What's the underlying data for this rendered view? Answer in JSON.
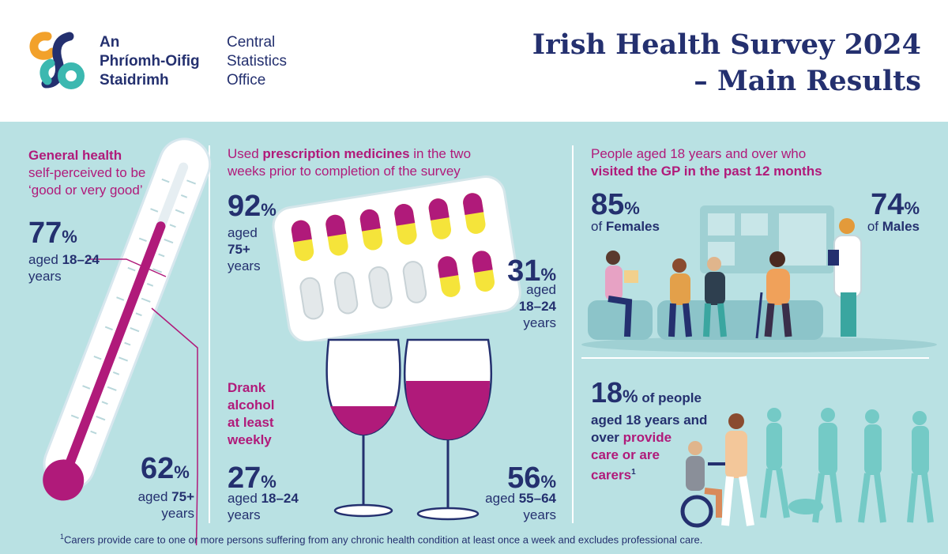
{
  "logo": {
    "irish_line1": "An",
    "irish_line2": "Phríomh-Oifig",
    "irish_line3": "Staidrimh",
    "english_line1": "Central",
    "english_line2": "Statistics",
    "english_line3": "Office"
  },
  "title": {
    "line1": "Irish Health Survey 2024",
    "line2": "– Main Results"
  },
  "general_health": {
    "heading_bold": "General health",
    "heading_rest1": "self-perceived to be",
    "heading_rest2": "‘good or very good’",
    "young_value": "77",
    "young_label1": "aged",
    "young_label_bold": "18–24",
    "young_label2": "years",
    "old_value": "62",
    "old_label1": "aged",
    "old_label_bold": "75+",
    "old_label2": "years"
  },
  "prescription": {
    "heading_pre": "Used ",
    "heading_bold": "prescription medicines",
    "heading_post": " in the two",
    "heading_line2": "weeks prior to completion of the survey",
    "old_value": "92",
    "old_label1": "aged",
    "old_label2": "75+",
    "old_label3": "years",
    "young_value": "31",
    "young_label1": "aged",
    "young_label2": "18–24",
    "young_label3": "years"
  },
  "gp": {
    "heading_line1": "People aged 18 years and over who",
    "heading_line2_bold": "visited the GP in the past 12 months",
    "female_value": "85",
    "female_label_pre": "of ",
    "female_label_bold": "Females",
    "male_value": "74",
    "male_label_pre": "of ",
    "male_label_bold": "Males"
  },
  "alcohol": {
    "heading1": "Drank",
    "heading2": "alcohol",
    "heading3": "at least",
    "heading4": "weekly",
    "young_value": "27",
    "young_label1": "aged",
    "young_label_bold": "18–24",
    "young_label2": "years",
    "mid_value": "56",
    "mid_label1": "aged",
    "mid_label_bold": "55–64",
    "mid_label2": "years"
  },
  "carers": {
    "value": "18",
    "line1": "of people",
    "line2": "aged 18 years and",
    "line3_pre": "over ",
    "line3_mag": "provide",
    "line4": "care or are",
    "line5": "carers",
    "sup": "1"
  },
  "footnote": {
    "marker": "1",
    "text": "Carers provide care to one or more persons suffering from any chronic health condition at least once a week and excludes professional care."
  },
  "pct_sign": "%",
  "colors": {
    "navy": "#24306f",
    "magenta": "#b01a7a",
    "teal_bg": "#b9e1e3",
    "logo_orange": "#f2a12b",
    "logo_teal": "#3cb8b0",
    "logo_navy": "#24306f",
    "pill_yellow": "#f5e43a",
    "wine": "#b01a7a"
  }
}
